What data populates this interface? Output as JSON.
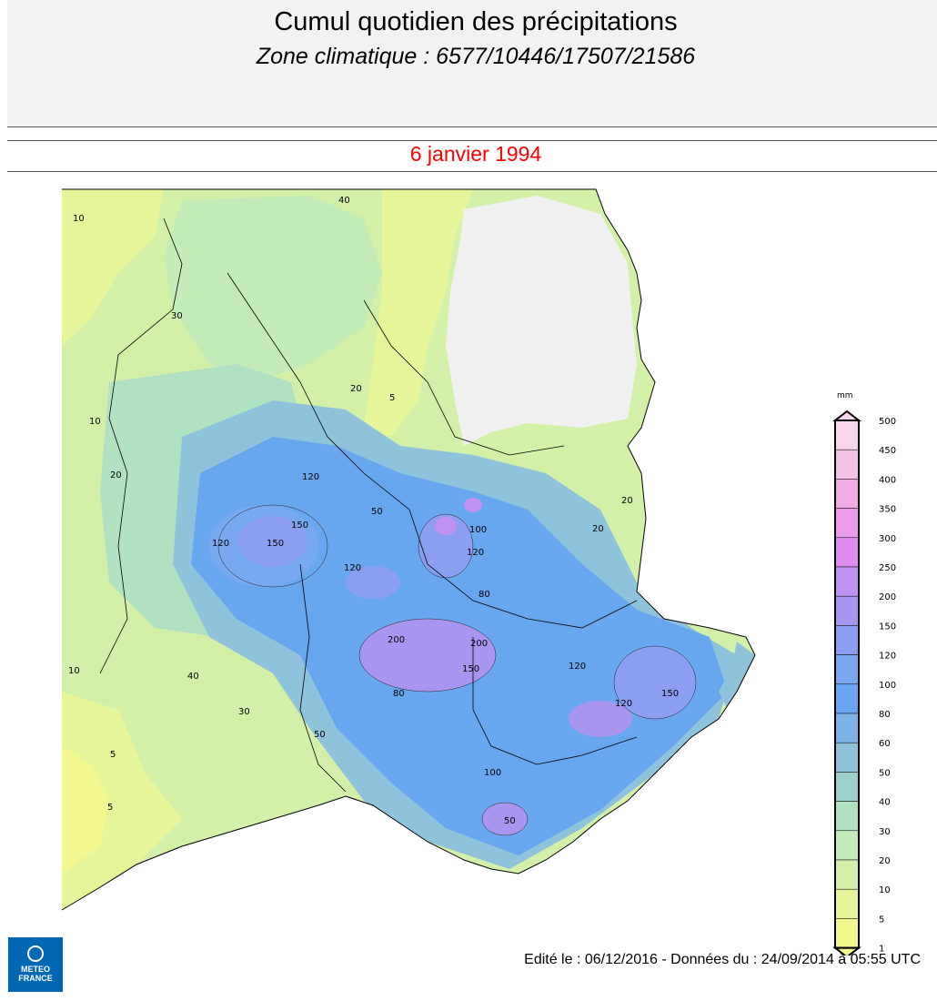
{
  "header": {
    "title": "Cumul quotidien des précipitations",
    "subtitle": "Zone climatique : 6577/10446/17507/21586",
    "date": "6 janvier 1994"
  },
  "legend": {
    "unit": "mm",
    "levels": [
      "500",
      "450",
      "400",
      "350",
      "300",
      "250",
      "200",
      "150",
      "120",
      "100",
      "80",
      "60",
      "50",
      "40",
      "30",
      "20",
      "10",
      "5",
      "1"
    ],
    "colors": [
      "#f9d5ec",
      "#f6c1e8",
      "#f1abe7",
      "#ec9aec",
      "#e08cef",
      "#bf92f1",
      "#a895ef",
      "#8b9ef1",
      "#78a8f0",
      "#68a6ef",
      "#7cb4e8",
      "#8fc3dc",
      "#9bd0cd",
      "#b0e2c2",
      "#c4ecb8",
      "#d3f0a8",
      "#e6f59a",
      "#f2f88e"
    ]
  },
  "map": {
    "contour_labels": [
      {
        "text": "10"
      },
      {
        "text": "40"
      },
      {
        "text": "30"
      },
      {
        "text": "20"
      },
      {
        "text": "5"
      },
      {
        "text": "10"
      },
      {
        "text": "20"
      },
      {
        "text": "50"
      },
      {
        "text": "120"
      },
      {
        "text": "150"
      },
      {
        "text": "150"
      },
      {
        "text": "120"
      },
      {
        "text": "120"
      },
      {
        "text": "200"
      },
      {
        "text": "200"
      },
      {
        "text": "150"
      },
      {
        "text": "120"
      },
      {
        "text": "80"
      },
      {
        "text": "100"
      },
      {
        "text": "120"
      },
      {
        "text": "150"
      },
      {
        "text": "120"
      },
      {
        "text": "50"
      },
      {
        "text": "100"
      },
      {
        "text": "40"
      },
      {
        "text": "30"
      },
      {
        "text": "5"
      },
      {
        "text": "5"
      },
      {
        "text": "10"
      },
      {
        "text": "20"
      },
      {
        "text": "20"
      },
      {
        "text": "50"
      },
      {
        "text": "80"
      }
    ]
  },
  "footer": {
    "credit": "Edité le : 06/12/2016 - Données du : 24/09/2014 à 05:55 UTC"
  },
  "logo": {
    "line1": "METEO",
    "line2": "FRANCE"
  }
}
